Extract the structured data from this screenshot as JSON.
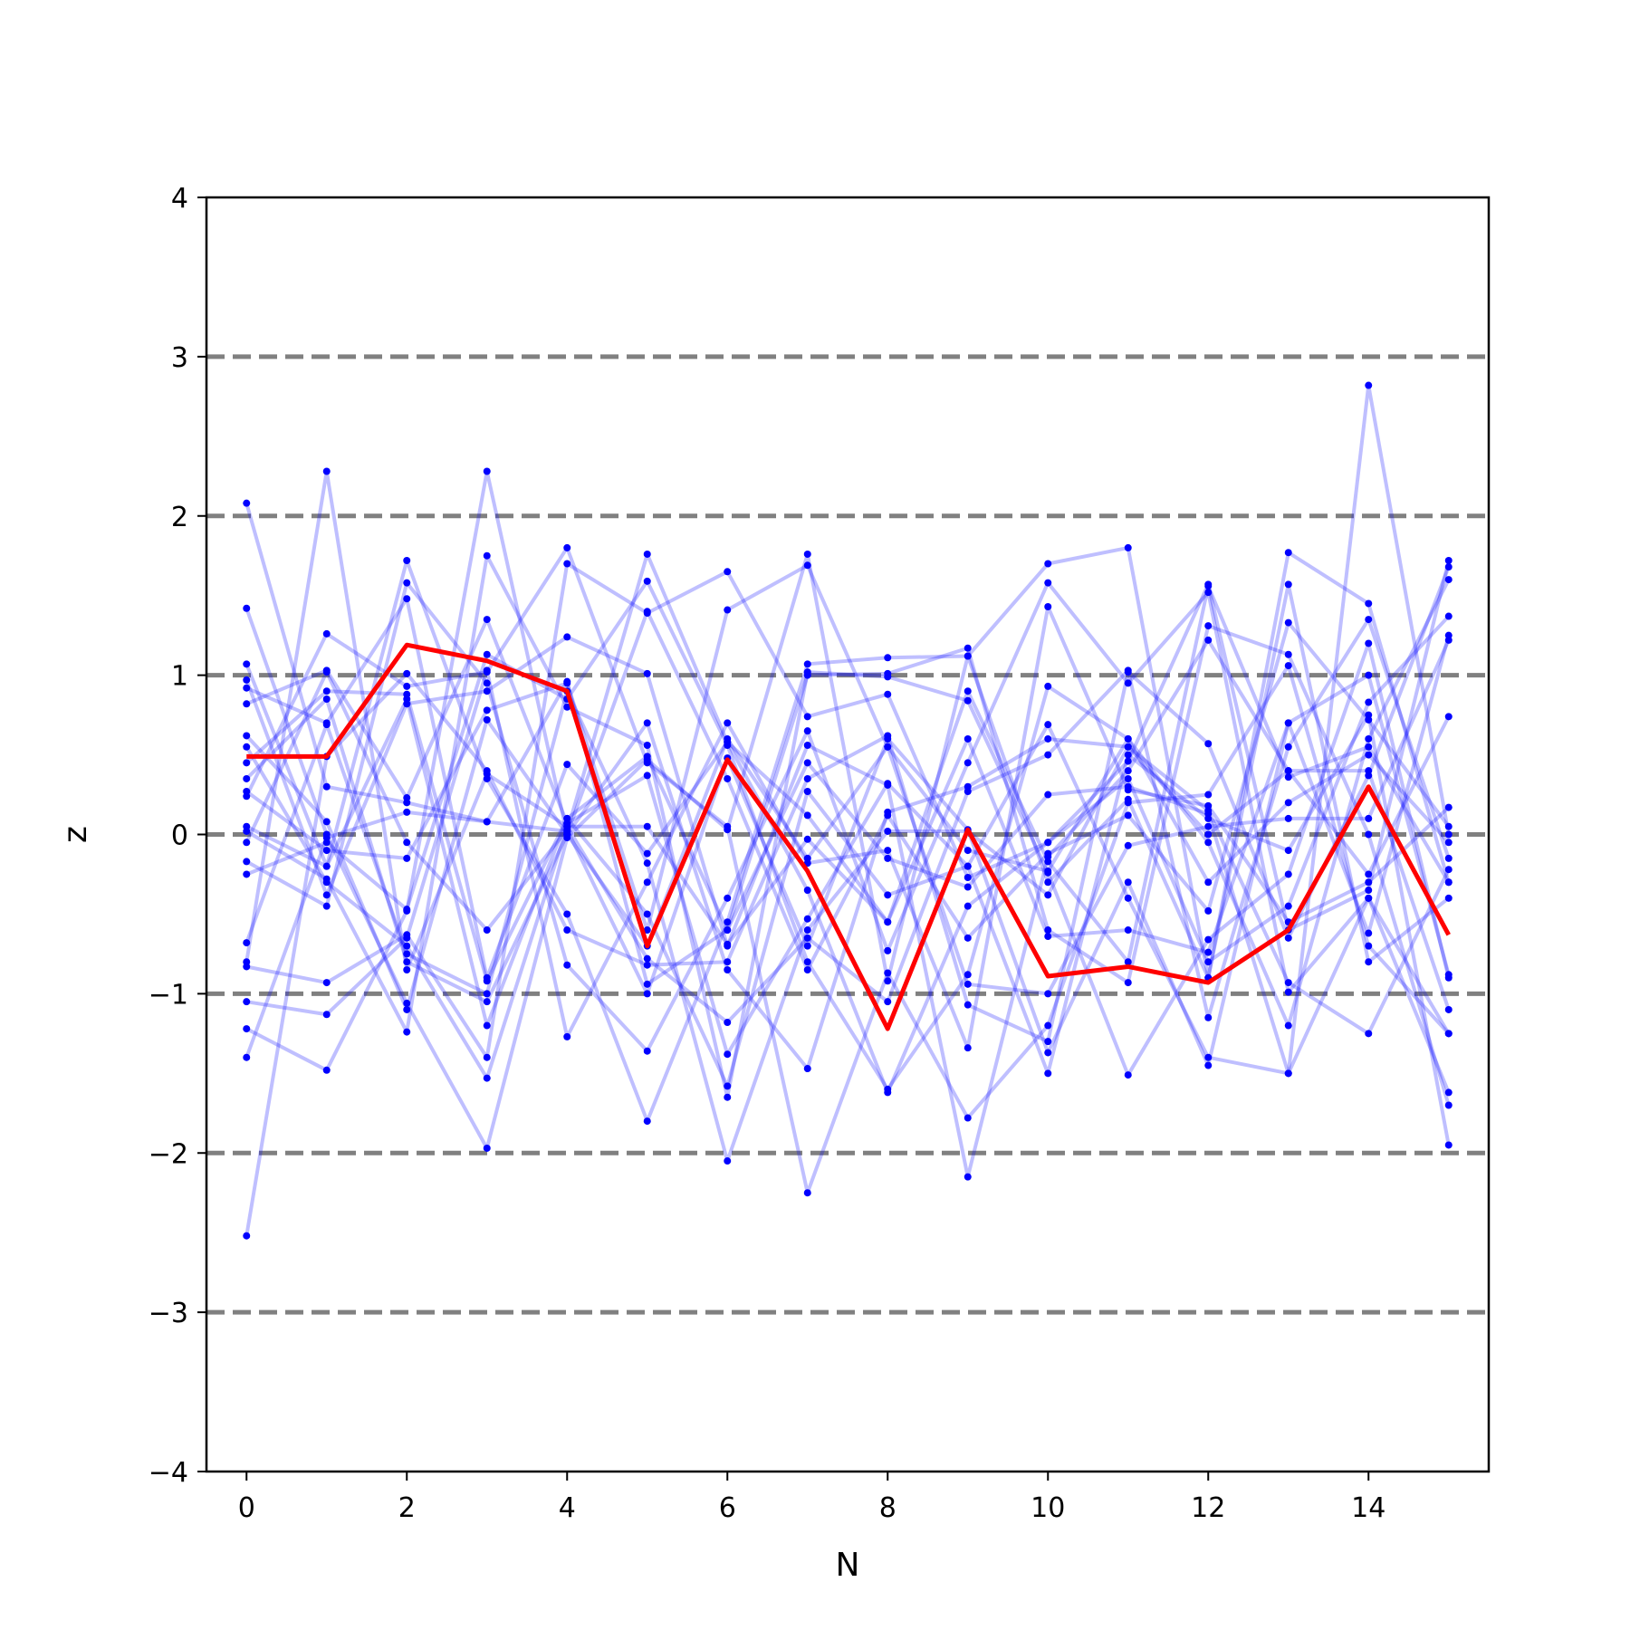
{
  "chart_data": {
    "type": "line",
    "title": "",
    "xlabel": "N",
    "ylabel": "z",
    "xlim": [
      -0.5,
      15.5
    ],
    "ylim": [
      -4,
      4
    ],
    "x": [
      0,
      1,
      2,
      3,
      4,
      5,
      6,
      7,
      8,
      9,
      10,
      11,
      12,
      13,
      14,
      15
    ],
    "xticks": [
      0,
      2,
      4,
      6,
      8,
      10,
      12,
      14
    ],
    "xtick_labels": [
      "0",
      "2",
      "4",
      "6",
      "8",
      "10",
      "12",
      "14"
    ],
    "yticks": [
      -4,
      -3,
      -2,
      -1,
      0,
      1,
      2,
      3,
      4
    ],
    "ytick_labels": [
      "−4",
      "−3",
      "−2",
      "−1",
      "0",
      "1",
      "2",
      "3",
      "4"
    ],
    "reference_lines": [
      -3,
      -2,
      -1,
      0,
      1,
      2,
      3
    ],
    "colors": {
      "samples": "#0000ff",
      "highlight": "#ff0000",
      "reference": "#808080"
    },
    "grid": false,
    "samples": [
      [
        2.08,
        0.3,
        0.2,
        0.08,
        0.02,
        1.76,
        0.58,
        -0.35,
        -1.62,
        -0.45,
        -0.05,
        0.46,
        1.57,
        -0.6,
        -0.35,
        1.72
      ],
      [
        1.42,
        0.0,
        -1.06,
        -1.97,
        -0.02,
        0.47,
        0.03,
        1.76,
        -0.92,
        1.12,
        -0.3,
        0.22,
        -0.9,
        1.77,
        1.45,
        -0.3
      ],
      [
        1.07,
        -0.2,
        1.72,
        0.35,
        -0.5,
        -1.8,
        -0.55,
        1.07,
        1.11,
        1.12,
        1.7,
        1.8,
        -0.9,
        1.57,
        -0.8,
        -0.4
      ],
      [
        0.97,
        -0.38,
        0.82,
        0.9,
        1.24,
        1.01,
        -0.7,
        0.56,
        0.31,
        -2.15,
        -0.14,
        0.4,
        1.22,
        0.4,
        -0.25,
        0.74
      ],
      [
        0.92,
        0.7,
        1.48,
        -0.9,
        0.44,
        -0.12,
        0.58,
        0.12,
        -0.55,
        0.6,
        -0.64,
        -0.6,
        -0.74,
        0.7,
        1.0,
        -0.88
      ],
      [
        0.82,
        1.03,
        0.23,
        1.35,
        0.07,
        0.37,
        -1.38,
        -0.53,
        0.32,
        -0.2,
        -1.5,
        0.5,
        0.1,
        -0.1,
        0.75,
        -1.95
      ],
      [
        0.62,
        0.08,
        -1.1,
        0.72,
        0.0,
        0.7,
        -0.85,
        -1.47,
        0.14,
        0.3,
        0.6,
        0.55,
        0.0,
        0.4,
        0.4,
        -1.1
      ],
      [
        0.45,
        0.9,
        0.88,
        -0.92,
        0.1,
        -0.5,
        -1.58,
        0.27,
        -0.38,
        -0.2,
        0.69,
        -0.4,
        -1.4,
        -1.5,
        2.82,
        0.0
      ],
      [
        0.24,
        1.26,
        0.93,
        1.02,
        1.8,
        0.45,
        0.05,
        -2.25,
        -0.87,
        -1.78,
        -1.2,
        0.2,
        0.25,
        1.06,
        -0.7,
        -1.25
      ],
      [
        0.27,
        -0.1,
        -0.15,
        0.78,
        0.95,
        -0.6,
        1.41,
        1.69,
        0.55,
        -0.94,
        -1.0,
        -0.07,
        0.05,
        0.1,
        0.1,
        1.22
      ],
      [
        0.02,
        -0.28,
        -1.24,
        1.75,
        0.8,
        0.56,
        -1.65,
        1.02,
        0.99,
        0.84,
        -0.24,
        -1.51,
        -0.66,
        -0.25,
        1.2,
        -0.9
      ],
      [
        -0.17,
        -0.45,
        1.58,
        0.95,
        -0.82,
        -1.36,
        -0.4,
        0.65,
        -0.73,
        0.45,
        1.58,
        0.95,
        1.52,
        -0.99,
        -0.4,
        -1.62
      ],
      [
        -0.25,
        -0.05,
        -0.47,
        1.13,
        0.85,
        1.59,
        0.56,
        -0.8,
        -1.6,
        -0.88,
        0.93,
        0.6,
        -0.05,
        -1.2,
        0.6,
        1.6
      ],
      [
        -0.68,
        0.69,
        -0.75,
        -1.0,
        0.9,
        -0.18,
        -2.05,
        -0.6,
        0.02,
        0.02,
        -0.38,
        0.55,
        0.15,
        -0.93,
        -1.25,
        -0.22
      ],
      [
        -0.8,
        2.28,
        -0.85,
        0.38,
        0.05,
        -0.78,
        -1.18,
        -0.65,
        -1.05,
        0.27,
        0.5,
        1.03,
        -1.15,
        0.55,
        1.35,
        -0.15
      ],
      [
        -0.83,
        -0.93,
        -0.63,
        -1.4,
        1.7,
        1.39,
        1.65,
        0.74,
        0.88,
        -0.27,
        -0.05,
        0.35,
        -0.8,
        -0.45,
        0.83,
        1.37
      ],
      [
        -1.05,
        -1.13,
        -0.65,
        1.03,
        -1.27,
        -0.3,
        0.7,
        -0.18,
        -0.1,
        -1.34,
        1.43,
        0.28,
        0.18,
        -0.55,
        -0.3,
        0.17
      ],
      [
        -1.22,
        -1.48,
        -0.48,
        2.28,
        0.0,
        1.4,
        0.35,
        -0.85,
        0.12,
        -0.65,
        -0.12,
        0.12,
        -0.48,
        1.33,
        0.72,
        0.05
      ],
      [
        -1.4,
        -0.02,
        0.14,
        0.08,
        0.96,
        -0.94,
        -0.6,
        1.0,
        1.01,
        1.17,
        -0.6,
        -0.93,
        1.31,
        1.13,
        0.0,
        -1.7
      ],
      [
        -2.52,
        0.49,
        1.01,
        0.4,
        -0.6,
        -0.82,
        -0.8,
        0.35,
        0.62,
        -1.07,
        -1.3,
        1.02,
        0.57,
        -0.65,
        0.37,
        1.68
      ],
      [
        0.55,
        -0.3,
        -0.7,
        -1.53,
        0.05,
        0.05,
        -0.69,
        -0.03,
        -0.55,
        0.9,
        -0.17,
        -0.8,
        1.56,
        0.36,
        0.55,
        -0.3
      ],
      [
        -0.05,
        1.02,
        -0.05,
        -0.6,
        0.03,
        -1.0,
        0.48,
        -0.7,
        0.6,
        0.03,
        -1.37,
        -0.3,
        -1.45,
        0.7,
        -0.62,
        1.25
      ],
      [
        0.05,
        -0.2,
        0.85,
        -1.2,
        0.1,
        0.49,
        -0.6,
        0.45,
        -0.15,
        -0.33,
        0.25,
        0.3,
        0.13,
        -1.5,
        -0.4,
        -1.25
      ],
      [
        0.35,
        0.85,
        -0.8,
        -1.05,
        0.0,
        -0.7,
        0.6,
        -0.15,
        0.55,
        -0.1,
        -0.23,
        0.6,
        -0.3,
        0.2,
        0.5,
        -0.05
      ]
    ],
    "highlight": [
      0.49,
      0.49,
      1.19,
      1.09,
      0.9,
      -0.7,
      0.47,
      -0.23,
      -1.22,
      0.03,
      -0.89,
      -0.83,
      -0.93,
      -0.6,
      0.3,
      -0.63
    ]
  }
}
